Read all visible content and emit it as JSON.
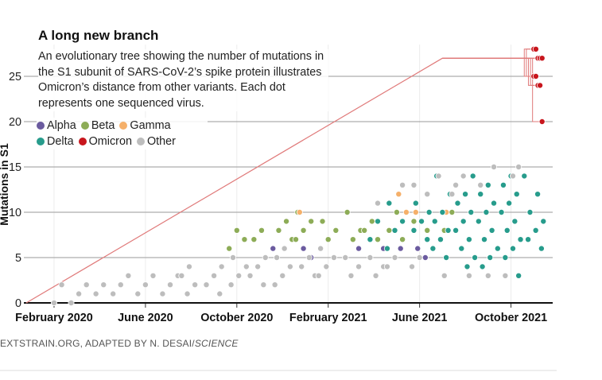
{
  "chart_data": {
    "type": "scatter",
    "title": "A long new branch",
    "subtitle": "An evolutionary tree showing the number of mutations in the S1 subunit of SARS-CoV-2’s spike protein illustrates Omicron’s distance from other variants. Each dot represents one sequenced virus.",
    "ylabel": "Mutations in S1",
    "credit": "EXTSTRAIN.ORG, ADAPTED BY N. DESAI/",
    "credit_source": "SCIENCE",
    "xlim": [
      "2020-01",
      "2021-12"
    ],
    "xticks": [
      {
        "value": "2020-02",
        "label": "February 2020"
      },
      {
        "value": "2020-06",
        "label": "June 2020"
      },
      {
        "value": "2020-10",
        "label": "October 2020"
      },
      {
        "value": "2021-02",
        "label": "February 2021"
      },
      {
        "value": "2021-06",
        "label": "June 2021"
      },
      {
        "value": "2021-10",
        "label": "October 2021"
      }
    ],
    "ylim": [
      0,
      28.5
    ],
    "yticks": [
      0,
      5,
      10,
      15,
      20,
      25
    ],
    "grid": true,
    "omicron_branch": {
      "x": [
        "2020-01",
        "2021-07"
      ],
      "values": [
        0,
        27
      ]
    },
    "series": [
      {
        "name": "Alpha",
        "color": "#6b5b9f",
        "x": [
          "2020-12",
          "2021-01",
          "2021-01",
          "2021-02",
          "2021-02",
          "2021-03",
          "2021-03",
          "2021-03",
          "2021-04",
          "2021-04",
          "2021-05",
          "2021-05",
          "2021-06",
          "2021-06"
        ],
        "values": [
          6,
          6,
          5,
          6,
          7,
          6,
          5,
          7,
          6,
          7,
          6,
          4,
          6,
          5
        ]
      },
      {
        "name": "Beta",
        "color": "#8dac57",
        "x": [
          "2020-10",
          "2020-10",
          "2020-10",
          "2020-11",
          "2020-11",
          "2020-12",
          "2020-12",
          "2020-12",
          "2021-01",
          "2021-01",
          "2021-01",
          "2021-01",
          "2021-02",
          "2021-02",
          "2021-02",
          "2021-03",
          "2021-03",
          "2021-03",
          "2021-04",
          "2021-04",
          "2021-04",
          "2021-05",
          "2021-05",
          "2021-05",
          "2021-06",
          "2021-06",
          "2021-07",
          "2021-07"
        ],
        "values": [
          6,
          8,
          7,
          7,
          8,
          7,
          8,
          9,
          7,
          8,
          9,
          10,
          7,
          8,
          9,
          7,
          8,
          10,
          7,
          8,
          9,
          7,
          8,
          10,
          8,
          9,
          8,
          10
        ]
      },
      {
        "name": "Gamma",
        "color": "#f5b06a",
        "x": [
          "2021-01",
          "2021-05",
          "2021-05",
          "2021-06",
          "2021-07"
        ],
        "values": [
          10,
          12,
          10,
          10,
          10
        ]
      },
      {
        "name": "Delta",
        "color": "#279c8c",
        "x": [
          "2021-04",
          "2021-04",
          "2021-05",
          "2021-05",
          "2021-05",
          "2021-05",
          "2021-06",
          "2021-06",
          "2021-06",
          "2021-06",
          "2021-06",
          "2021-06",
          "2021-07",
          "2021-07",
          "2021-07",
          "2021-07",
          "2021-07",
          "2021-07",
          "2021-07",
          "2021-07",
          "2021-08",
          "2021-08",
          "2021-08",
          "2021-08",
          "2021-08",
          "2021-08",
          "2021-08",
          "2021-08",
          "2021-08",
          "2021-08",
          "2021-09",
          "2021-09",
          "2021-09",
          "2021-09",
          "2021-09",
          "2021-09",
          "2021-09",
          "2021-09",
          "2021-09",
          "2021-09",
          "2021-10",
          "2021-10",
          "2021-10",
          "2021-10",
          "2021-10",
          "2021-10",
          "2021-10",
          "2021-10",
          "2021-10",
          "2021-10",
          "2021-10",
          "2021-11",
          "2021-11",
          "2021-11",
          "2021-11",
          "2021-11",
          "2021-11",
          "2021-11"
        ],
        "values": [
          7,
          9,
          6,
          8,
          9,
          11,
          5,
          7,
          8,
          9,
          10,
          11,
          5,
          6,
          7,
          8,
          9,
          10,
          12,
          14,
          4,
          5,
          6,
          7,
          8,
          9,
          10,
          11,
          12,
          14,
          4,
          5,
          6,
          7,
          8,
          9,
          10,
          11,
          12,
          13,
          3,
          5,
          6,
          7,
          8,
          9,
          10,
          11,
          12,
          13,
          14,
          6,
          7,
          8,
          9,
          10,
          12,
          14
        ]
      },
      {
        "name": "Omicron",
        "color": "#c8161d",
        "x": [
          "2021-11",
          "2021-11",
          "2021-11",
          "2021-11",
          "2021-11",
          "2021-11",
          "2021-11",
          "2021-11",
          "2021-11",
          "2021-11"
        ],
        "values": [
          28,
          28,
          27,
          27,
          27,
          25,
          25,
          24,
          24,
          20
        ]
      },
      {
        "name": "Other",
        "color": "#bdbdbd",
        "x": [
          "2020-02",
          "2020-02",
          "2020-03",
          "2020-03",
          "2020-03",
          "2020-04",
          "2020-04",
          "2020-05",
          "2020-05",
          "2020-05",
          "2020-06",
          "2020-06",
          "2020-06",
          "2020-07",
          "2020-07",
          "2020-07",
          "2020-08",
          "2020-08",
          "2020-08",
          "2020-08",
          "2020-09",
          "2020-09",
          "2020-09",
          "2020-09",
          "2020-10",
          "2020-10",
          "2020-10",
          "2020-10",
          "2020-11",
          "2020-11",
          "2020-11",
          "2020-11",
          "2020-12",
          "2020-12",
          "2020-12",
          "2020-12",
          "2020-12",
          "2021-01",
          "2021-01",
          "2021-01",
          "2021-02",
          "2021-02",
          "2021-02",
          "2021-02",
          "2021-03",
          "2021-03",
          "2021-03",
          "2021-04",
          "2021-04",
          "2021-04",
          "2021-04",
          "2021-05",
          "2021-05",
          "2021-05",
          "2021-06",
          "2021-06",
          "2021-06",
          "2021-06",
          "2021-07",
          "2021-07",
          "2021-07",
          "2021-08",
          "2021-08",
          "2021-08",
          "2021-09",
          "2021-09",
          "2021-09",
          "2021-10",
          "2021-10",
          "2021-10"
        ],
        "values": [
          0,
          2,
          0,
          1,
          2,
          1,
          2,
          1,
          2,
          3,
          1,
          2,
          3,
          1,
          2,
          3,
          1,
          2,
          3,
          4,
          1,
          2,
          3,
          4,
          2,
          3,
          4,
          5,
          2,
          3,
          4,
          5,
          2,
          3,
          4,
          5,
          6,
          3,
          4,
          5,
          3,
          4,
          5,
          6,
          3,
          4,
          5,
          3,
          4,
          5,
          11,
          4,
          5,
          13,
          4,
          5,
          12,
          13,
          3,
          12,
          14,
          3,
          13,
          14,
          15,
          13,
          3,
          15,
          3,
          14
        ]
      }
    ]
  }
}
